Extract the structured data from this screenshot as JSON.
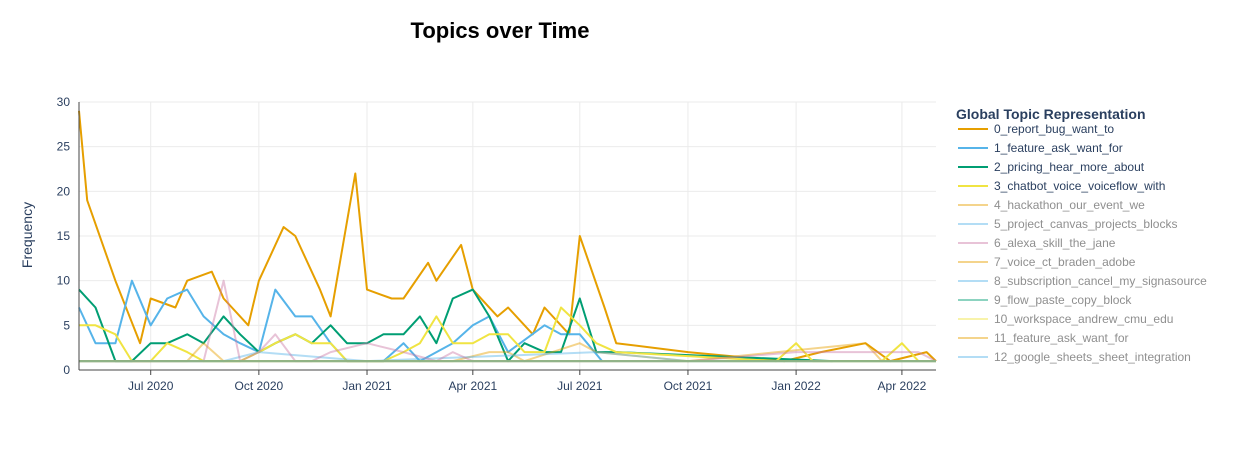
{
  "chart_data": {
    "type": "line",
    "title": "Topics over Time",
    "xlabel": "",
    "ylabel": "Frequency",
    "ylim": [
      0,
      30
    ],
    "xlim": [
      "2020-05-01",
      "2022-04-30"
    ],
    "y_ticks": [
      0,
      5,
      10,
      15,
      20,
      25,
      30
    ],
    "x_ticks": [
      {
        "date": "2020-07-01",
        "label": "Jul 2020"
      },
      {
        "date": "2020-10-01",
        "label": "Oct 2020"
      },
      {
        "date": "2021-01-01",
        "label": "Jan 2021"
      },
      {
        "date": "2021-04-01",
        "label": "Apr 2021"
      },
      {
        "date": "2021-07-01",
        "label": "Jul 2021"
      },
      {
        "date": "2021-10-01",
        "label": "Oct 2021"
      },
      {
        "date": "2022-01-01",
        "label": "Jan 2022"
      },
      {
        "date": "2022-04-01",
        "label": "Apr 2022"
      }
    ],
    "grid": true,
    "legend_title": "Global Topic Representation",
    "legend_position": "right",
    "series": [
      {
        "name": "0_report_bug_want_to",
        "color": "#E69F00",
        "visible": true,
        "points": [
          [
            "2020-05-01",
            29
          ],
          [
            "2020-05-08",
            19
          ],
          [
            "2020-06-01",
            10
          ],
          [
            "2020-06-22",
            3
          ],
          [
            "2020-07-01",
            8
          ],
          [
            "2020-07-22",
            7
          ],
          [
            "2020-08-01",
            10
          ],
          [
            "2020-08-22",
            11
          ],
          [
            "2020-09-01",
            8
          ],
          [
            "2020-09-22",
            5
          ],
          [
            "2020-10-01",
            10
          ],
          [
            "2020-10-22",
            16
          ],
          [
            "2020-11-01",
            15
          ],
          [
            "2020-11-22",
            9
          ],
          [
            "2020-12-01",
            6
          ],
          [
            "2020-12-22",
            22
          ],
          [
            "2021-01-01",
            9
          ],
          [
            "2021-01-22",
            8
          ],
          [
            "2021-02-01",
            8
          ],
          [
            "2021-02-22",
            12
          ],
          [
            "2021-03-01",
            10
          ],
          [
            "2021-03-22",
            14
          ],
          [
            "2021-04-01",
            9
          ],
          [
            "2021-04-22",
            6
          ],
          [
            "2021-05-01",
            7
          ],
          [
            "2021-05-22",
            4
          ],
          [
            "2021-06-01",
            7
          ],
          [
            "2021-06-22",
            4
          ],
          [
            "2021-07-01",
            15
          ],
          [
            "2021-07-22",
            7
          ],
          [
            "2021-08-01",
            3
          ],
          [
            "2021-10-01",
            2
          ],
          [
            "2021-12-22",
            1
          ],
          [
            "2022-01-22",
            2
          ],
          [
            "2022-03-01",
            3
          ],
          [
            "2022-03-22",
            1
          ],
          [
            "2022-04-22",
            2
          ],
          [
            "2022-04-30",
            1
          ]
        ]
      },
      {
        "name": "1_feature_ask_want_for",
        "color": "#56B4E9",
        "visible": true,
        "points": [
          [
            "2020-05-01",
            7
          ],
          [
            "2020-05-15",
            3
          ],
          [
            "2020-06-01",
            3
          ],
          [
            "2020-06-15",
            10
          ],
          [
            "2020-07-01",
            5
          ],
          [
            "2020-07-15",
            8
          ],
          [
            "2020-08-01",
            9
          ],
          [
            "2020-08-15",
            6
          ],
          [
            "2020-09-01",
            4
          ],
          [
            "2020-09-15",
            3
          ],
          [
            "2020-10-01",
            2
          ],
          [
            "2020-10-15",
            9
          ],
          [
            "2020-11-01",
            6
          ],
          [
            "2020-11-15",
            6
          ],
          [
            "2020-12-01",
            3
          ],
          [
            "2020-12-15",
            1
          ],
          [
            "2021-01-15",
            1
          ],
          [
            "2021-02-01",
            3
          ],
          [
            "2021-02-15",
            1
          ],
          [
            "2021-03-15",
            3
          ],
          [
            "2021-04-01",
            5
          ],
          [
            "2021-04-15",
            6
          ],
          [
            "2021-05-01",
            2
          ],
          [
            "2021-06-01",
            5
          ],
          [
            "2021-06-15",
            4
          ],
          [
            "2021-07-01",
            4
          ],
          [
            "2021-07-20",
            1
          ]
        ]
      },
      {
        "name": "2_pricing_hear_more_about",
        "color": "#009E73",
        "visible": true,
        "points": [
          [
            "2020-05-01",
            9
          ],
          [
            "2020-05-15",
            7
          ],
          [
            "2020-06-01",
            1
          ],
          [
            "2020-06-15",
            1
          ],
          [
            "2020-07-01",
            3
          ],
          [
            "2020-07-15",
            3
          ],
          [
            "2020-08-01",
            4
          ],
          [
            "2020-08-15",
            3
          ],
          [
            "2020-09-01",
            6
          ],
          [
            "2020-09-15",
            4
          ],
          [
            "2020-10-01",
            2
          ],
          [
            "2020-10-15",
            3
          ],
          [
            "2020-11-01",
            4
          ],
          [
            "2020-11-15",
            3
          ],
          [
            "2020-12-01",
            5
          ],
          [
            "2020-12-15",
            3
          ],
          [
            "2021-01-01",
            3
          ],
          [
            "2021-01-15",
            4
          ],
          [
            "2021-02-01",
            4
          ],
          [
            "2021-02-15",
            6
          ],
          [
            "2021-03-01",
            3
          ],
          [
            "2021-03-15",
            8
          ],
          [
            "2021-04-01",
            9
          ],
          [
            "2021-04-15",
            6
          ],
          [
            "2021-05-01",
            1
          ],
          [
            "2021-05-15",
            3
          ],
          [
            "2021-06-01",
            2
          ],
          [
            "2021-06-15",
            2
          ],
          [
            "2021-07-01",
            8
          ],
          [
            "2021-07-15",
            2
          ],
          [
            "2021-08-01",
            2
          ],
          [
            "2022-02-01",
            1
          ]
        ]
      },
      {
        "name": "3_chatbot_voice_voiceflow_with",
        "color": "#F0E442",
        "visible": true,
        "points": [
          [
            "2020-05-01",
            5
          ],
          [
            "2020-05-15",
            5
          ],
          [
            "2020-06-01",
            4
          ],
          [
            "2020-06-15",
            1
          ],
          [
            "2020-07-01",
            1
          ],
          [
            "2020-07-15",
            3
          ],
          [
            "2020-08-01",
            2
          ],
          [
            "2020-08-15",
            1
          ],
          [
            "2020-09-01",
            1
          ],
          [
            "2020-09-15",
            1
          ],
          [
            "2020-10-01",
            2
          ],
          [
            "2020-10-15",
            3
          ],
          [
            "2020-11-01",
            4
          ],
          [
            "2020-11-15",
            3
          ],
          [
            "2020-12-01",
            3
          ],
          [
            "2020-12-15",
            1
          ],
          [
            "2021-01-15",
            1
          ],
          [
            "2021-02-01",
            2
          ],
          [
            "2021-02-15",
            3
          ],
          [
            "2021-03-01",
            6
          ],
          [
            "2021-03-15",
            3
          ],
          [
            "2021-04-01",
            3
          ],
          [
            "2021-04-15",
            4
          ],
          [
            "2021-05-01",
            4
          ],
          [
            "2021-05-15",
            2
          ],
          [
            "2021-06-01",
            2
          ],
          [
            "2021-06-15",
            7
          ],
          [
            "2021-07-01",
            5
          ],
          [
            "2021-07-15",
            3
          ],
          [
            "2021-08-01",
            2
          ],
          [
            "2021-12-15",
            1
          ],
          [
            "2022-01-01",
            3
          ],
          [
            "2022-01-15",
            1
          ],
          [
            "2022-03-15",
            1
          ],
          [
            "2022-04-01",
            3
          ],
          [
            "2022-04-15",
            1
          ]
        ]
      },
      {
        "name": "4_hackathon_our_event_we",
        "color": "#E69F00",
        "visible": false,
        "points": [
          [
            "2020-05-01",
            1
          ],
          [
            "2020-08-01",
            1
          ],
          [
            "2020-08-15",
            3
          ],
          [
            "2020-09-01",
            1
          ],
          [
            "2021-01-01",
            1
          ],
          [
            "2021-03-15",
            1
          ],
          [
            "2021-04-15",
            2
          ],
          [
            "2021-05-01",
            2
          ],
          [
            "2021-05-15",
            1
          ],
          [
            "2021-07-01",
            3
          ],
          [
            "2021-07-15",
            2
          ],
          [
            "2021-10-01",
            1
          ],
          [
            "2022-03-01",
            3
          ],
          [
            "2022-03-15",
            1
          ],
          [
            "2022-04-30",
            1
          ]
        ]
      },
      {
        "name": "5_project_canvas_projects_blocks",
        "color": "#56B4E9",
        "visible": false,
        "points": [
          [
            "2020-05-01",
            1
          ],
          [
            "2020-09-01",
            1
          ],
          [
            "2020-10-01",
            2
          ],
          [
            "2021-01-01",
            1
          ],
          [
            "2021-07-15",
            2
          ],
          [
            "2021-10-01",
            1
          ],
          [
            "2022-04-30",
            1
          ]
        ]
      },
      {
        "name": "6_alexa_skill_the_jane",
        "color": "#CC79A7",
        "visible": false,
        "points": [
          [
            "2020-05-01",
            1
          ],
          [
            "2020-08-15",
            1
          ],
          [
            "2020-09-01",
            10
          ],
          [
            "2020-09-15",
            1
          ],
          [
            "2020-10-01",
            2
          ],
          [
            "2020-10-15",
            4
          ],
          [
            "2020-11-01",
            1
          ],
          [
            "2020-11-15",
            1
          ],
          [
            "2020-12-01",
            2
          ],
          [
            "2021-01-01",
            3
          ],
          [
            "2021-02-01",
            2
          ],
          [
            "2021-03-01",
            1
          ],
          [
            "2021-03-15",
            2
          ],
          [
            "2021-04-01",
            1
          ],
          [
            "2021-07-01",
            1
          ],
          [
            "2021-10-01",
            1
          ],
          [
            "2022-01-01",
            2
          ],
          [
            "2022-04-15",
            2
          ],
          [
            "2022-04-30",
            1
          ]
        ]
      },
      {
        "name": "7_voice_ct_braden_adobe",
        "color": "#E69F00",
        "visible": false,
        "points": [
          [
            "2020-05-01",
            1
          ],
          [
            "2022-04-30",
            1
          ]
        ]
      },
      {
        "name": "8_subscription_cancel_my_signasource",
        "color": "#56B4E9",
        "visible": false,
        "points": [
          [
            "2020-05-01",
            1
          ],
          [
            "2022-04-30",
            1
          ]
        ]
      },
      {
        "name": "9_flow_paste_copy_block",
        "color": "#009E73",
        "visible": false,
        "points": [
          [
            "2020-05-01",
            1
          ],
          [
            "2022-04-30",
            1
          ]
        ]
      },
      {
        "name": "10_workspace_andrew_cmu_edu",
        "color": "#F0E442",
        "visible": false,
        "points": [
          [
            "2020-05-01",
            1
          ],
          [
            "2022-04-30",
            1
          ]
        ]
      },
      {
        "name": "11_feature_ask_want_for",
        "color": "#E69F00",
        "visible": false,
        "points": [
          [
            "2020-05-01",
            1
          ],
          [
            "2022-04-30",
            1
          ]
        ]
      },
      {
        "name": "12_google_sheets_sheet_integration",
        "color": "#56B4E9",
        "visible": false,
        "points": [
          [
            "2020-05-01",
            1
          ],
          [
            "2022-04-30",
            1
          ]
        ]
      }
    ]
  }
}
